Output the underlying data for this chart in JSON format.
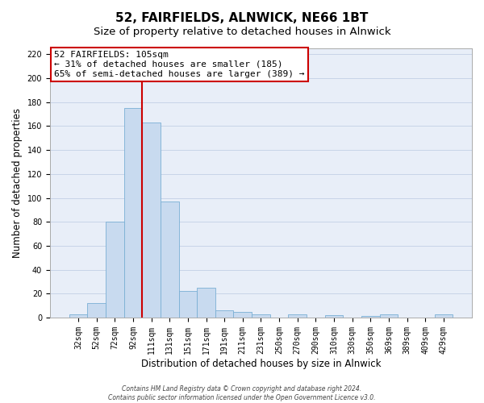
{
  "title": "52, FAIRFIELDS, ALNWICK, NE66 1BT",
  "subtitle": "Size of property relative to detached houses in Alnwick",
  "xlabel": "Distribution of detached houses by size in Alnwick",
  "ylabel": "Number of detached properties",
  "bar_labels": [
    "32sqm",
    "52sqm",
    "72sqm",
    "92sqm",
    "111sqm",
    "131sqm",
    "151sqm",
    "171sqm",
    "191sqm",
    "211sqm",
    "231sqm",
    "250sqm",
    "270sqm",
    "290sqm",
    "310sqm",
    "330sqm",
    "350sqm",
    "369sqm",
    "389sqm",
    "409sqm",
    "429sqm"
  ],
  "bar_values": [
    3,
    12,
    80,
    175,
    163,
    97,
    22,
    25,
    6,
    5,
    3,
    0,
    3,
    0,
    2,
    0,
    1,
    3,
    0,
    0,
    3
  ],
  "bar_color": "#c8daef",
  "bar_edge_color": "#7aafd4",
  "vline_color": "#cc0000",
  "vline_idx": 4,
  "ylim": [
    0,
    225
  ],
  "yticks": [
    0,
    20,
    40,
    60,
    80,
    100,
    120,
    140,
    160,
    180,
    200,
    220
  ],
  "annotation_line1": "52 FAIRFIELDS: 105sqm",
  "annotation_line2": "← 31% of detached houses are smaller (185)",
  "annotation_line3": "65% of semi-detached houses are larger (389) →",
  "annotation_box_color": "#ffffff",
  "annotation_box_edge": "#cc0000",
  "footer_line1": "Contains HM Land Registry data © Crown copyright and database right 2024.",
  "footer_line2": "Contains public sector information licensed under the Open Government Licence v3.0.",
  "title_fontsize": 11,
  "subtitle_fontsize": 9.5,
  "tick_fontsize": 7,
  "ylabel_fontsize": 8.5,
  "xlabel_fontsize": 8.5,
  "annot_fontsize": 8,
  "footer_fontsize": 5.5,
  "bg_color": "#e8eef8",
  "grid_color": "#c8d4e8"
}
